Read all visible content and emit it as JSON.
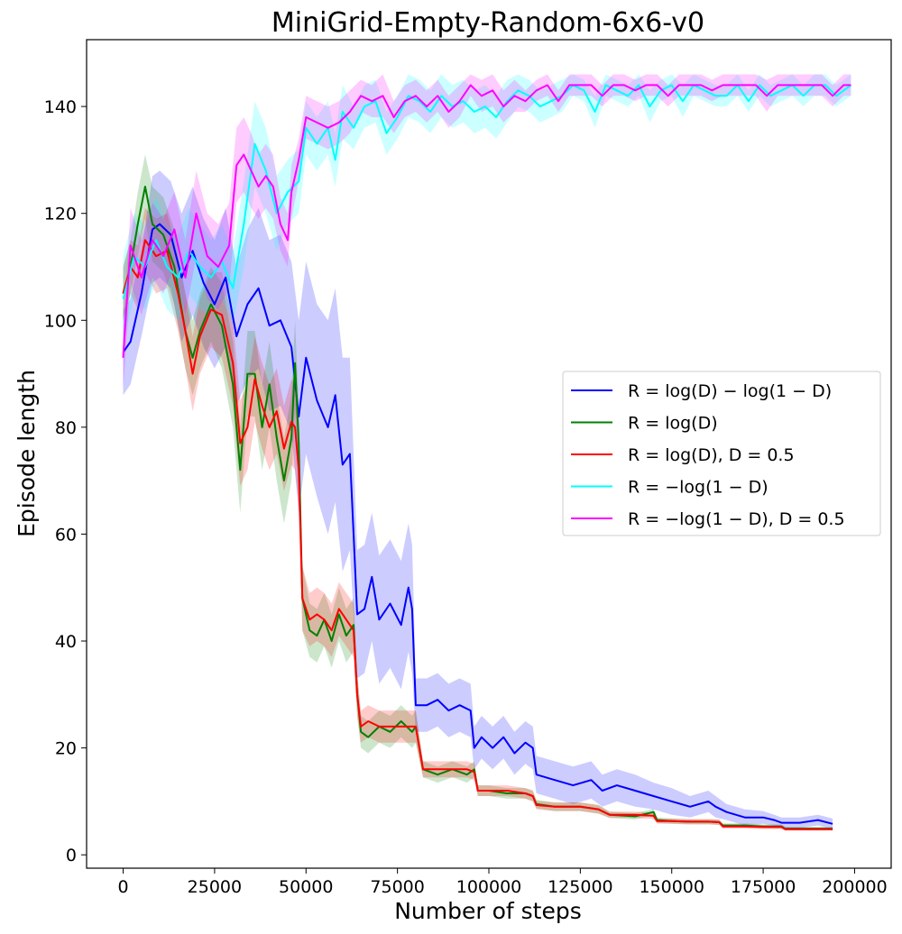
{
  "chart_data": {
    "type": "line",
    "title": "MiniGrid-Empty-Random-6x6-v0",
    "xlabel": "Number of steps",
    "ylabel": "Episode length",
    "xlim": [
      -10000,
      210000
    ],
    "ylim": [
      -2.5,
      152.5
    ],
    "xticks": [
      0,
      25000,
      50000,
      75000,
      100000,
      125000,
      150000,
      175000,
      200000
    ],
    "xtick_labels": [
      "0",
      "25000",
      "50000",
      "75000",
      "100000",
      "125000",
      "150000",
      "175000",
      "200000"
    ],
    "yticks": [
      0,
      20,
      40,
      60,
      80,
      100,
      120,
      140
    ],
    "ytick_labels": [
      "0",
      "20",
      "40",
      "60",
      "80",
      "100",
      "120",
      "140"
    ],
    "grid": false,
    "legend_position": "center-right",
    "series": [
      {
        "name": "R = log(D) − log(1 − D)",
        "color": "#0000ff",
        "x": [
          0,
          2000,
          5000,
          8000,
          10000,
          13000,
          16000,
          19000,
          22000,
          25000,
          28000,
          31000,
          34000,
          37000,
          40000,
          43000,
          46000,
          48000,
          50000,
          53000,
          56000,
          58000,
          60000,
          62000,
          63000,
          64000,
          66000,
          68000,
          70000,
          73000,
          76000,
          78000,
          79000,
          80000,
          83000,
          86000,
          89000,
          92000,
          95000,
          96000,
          98000,
          101000,
          104000,
          107000,
          110000,
          112000,
          113000,
          118000,
          123000,
          128000,
          131000,
          135000,
          140000,
          145000,
          150000,
          155000,
          160000,
          162000,
          165000,
          170000,
          175000,
          178000,
          180000,
          185000,
          190000,
          194000
        ],
        "y": [
          94,
          96,
          105,
          117,
          118,
          116,
          108,
          113,
          107,
          103,
          108,
          97,
          103,
          106,
          99,
          100,
          95,
          82,
          93,
          85,
          80,
          86,
          73,
          75,
          60,
          45,
          46,
          52,
          44,
          47,
          43,
          50,
          46,
          28,
          28,
          29,
          27,
          28,
          27,
          20,
          22,
          20,
          22,
          19,
          21,
          20,
          15,
          14,
          13,
          14,
          12,
          13,
          12,
          11,
          10,
          9,
          10,
          9,
          8,
          7,
          7,
          6.5,
          6,
          6,
          6.5,
          5.8
        ],
        "spread": [
          8,
          8,
          8,
          10,
          10,
          10,
          12,
          12,
          12,
          12,
          13,
          13,
          14,
          15,
          16,
          16,
          16,
          18,
          18,
          18,
          20,
          20,
          20,
          18,
          15,
          12,
          12,
          12,
          12,
          12,
          12,
          12,
          12,
          5,
          5,
          5,
          5,
          5,
          5,
          4,
          4,
          4,
          4,
          4,
          4,
          4,
          3.5,
          3.5,
          3.5,
          3.5,
          3,
          3,
          3,
          2.5,
          2.5,
          2,
          2,
          2,
          1.5,
          1.5,
          1.2,
          1,
          1,
          1,
          1,
          1
        ]
      },
      {
        "name": "R = log(D)",
        "color": "#008000",
        "x": [
          0,
          2000,
          4000,
          6000,
          8000,
          11000,
          14000,
          17000,
          19000,
          21000,
          24000,
          27000,
          30000,
          32000,
          34000,
          36000,
          38000,
          40000,
          42000,
          44000,
          46000,
          47000,
          48000,
          49000,
          51000,
          53000,
          55000,
          57000,
          59000,
          61000,
          63000,
          64000,
          65000,
          67000,
          70000,
          73000,
          76000,
          79000,
          80000,
          82000,
          86000,
          90000,
          94000,
          96000,
          97000,
          100000,
          105000,
          110000,
          112000,
          113000,
          118000,
          125000,
          130000,
          133000,
          140000,
          145000,
          146000,
          150000,
          155000,
          160000,
          163000,
          164000,
          170000,
          175000,
          180000,
          181000,
          190000,
          194000
        ],
        "y": [
          105,
          110,
          118,
          125,
          118,
          116,
          110,
          98,
          93,
          98,
          103,
          99,
          88,
          72,
          90,
          90,
          80,
          88,
          78,
          70,
          78,
          92,
          77,
          48,
          42,
          41,
          44,
          40,
          45,
          41,
          43,
          30,
          23,
          22,
          24,
          23,
          25,
          23,
          24,
          16,
          15,
          16,
          15,
          16,
          12,
          12,
          11.5,
          11.5,
          11,
          9.5,
          9,
          9,
          8.5,
          7.5,
          7.2,
          8,
          6.5,
          6.3,
          6.2,
          6.2,
          6.1,
          5.5,
          5.5,
          5.3,
          5.3,
          4.9,
          4.9,
          4.9
        ],
        "spread": [
          5,
          5,
          6,
          6,
          7,
          7,
          7,
          7,
          7,
          7,
          7,
          8,
          8,
          8,
          8,
          8,
          8,
          8,
          8,
          8,
          8,
          8,
          7,
          6,
          5,
          5,
          5,
          5,
          5,
          5,
          5,
          4,
          3,
          3,
          3,
          3,
          3,
          3,
          3,
          1.5,
          1.5,
          1.5,
          1.5,
          1.5,
          1,
          1,
          1,
          1,
          1,
          0.8,
          0.8,
          0.8,
          0.8,
          0.6,
          0.6,
          0.6,
          0.5,
          0.5,
          0.5,
          0.5,
          0.5,
          0.4,
          0.4,
          0.4,
          0.4,
          0.3,
          0.3,
          0.3
        ]
      },
      {
        "name": "R = log(D), D = 0.5",
        "color": "#ff0000",
        "x": [
          0,
          2000,
          4000,
          6000,
          9000,
          12000,
          15000,
          17000,
          19000,
          21000,
          24000,
          27000,
          30000,
          32000,
          34000,
          36000,
          38000,
          40000,
          42000,
          44000,
          46000,
          47000,
          48000,
          49000,
          51000,
          53000,
          55000,
          57000,
          59000,
          61000,
          63000,
          64000,
          65000,
          67000,
          70000,
          73000,
          76000,
          79000,
          80000,
          82000,
          86000,
          90000,
          94000,
          96000,
          97000,
          100000,
          105000,
          110000,
          112000,
          113000,
          118000,
          125000,
          130000,
          133000,
          140000,
          145000,
          146000,
          150000,
          155000,
          160000,
          163000,
          164000,
          170000,
          175000,
          180000,
          181000,
          190000,
          194000
        ],
        "y": [
          105,
          110,
          108,
          115,
          112,
          113,
          105,
          98,
          90,
          97,
          102,
          101,
          92,
          77,
          80,
          89,
          84,
          80,
          83,
          76,
          81,
          80,
          72,
          48,
          44,
          45,
          44,
          42,
          46,
          44,
          42,
          30,
          24,
          25,
          24,
          24,
          24,
          24,
          24,
          16,
          16,
          16,
          16,
          15.5,
          12,
          12,
          12,
          11.5,
          11,
          9.3,
          9,
          9,
          8.5,
          7.5,
          7.5,
          7.3,
          6.3,
          6.3,
          6.2,
          6.2,
          6.1,
          5.3,
          5.3,
          5.2,
          5.2,
          4.8,
          4.8,
          4.8
        ],
        "spread": [
          5,
          5,
          6,
          6,
          7,
          7,
          7,
          7,
          7,
          7,
          7,
          8,
          8,
          8,
          8,
          8,
          8,
          8,
          8,
          8,
          8,
          8,
          7,
          6,
          5,
          5,
          5,
          5,
          5,
          5,
          5,
          4,
          3,
          3,
          3,
          3,
          3,
          3,
          3,
          1.5,
          1.5,
          1.5,
          1.5,
          1.5,
          1,
          1,
          1,
          1,
          1,
          0.8,
          0.8,
          0.8,
          0.8,
          0.6,
          0.6,
          0.6,
          0.5,
          0.5,
          0.5,
          0.5,
          0.5,
          0.4,
          0.4,
          0.4,
          0.4,
          0.3,
          0.3,
          0.3
        ]
      },
      {
        "name": "R = −log(1 − D)",
        "color": "#00ffff",
        "x": [
          0,
          3000,
          6000,
          9000,
          12000,
          15000,
          18000,
          21000,
          24000,
          27000,
          30000,
          33000,
          36000,
          39000,
          42000,
          45000,
          48000,
          50000,
          53000,
          56000,
          58000,
          60000,
          63000,
          66000,
          69000,
          72000,
          75000,
          78000,
          81000,
          84000,
          87000,
          90000,
          93000,
          96000,
          99000,
          102000,
          105000,
          108000,
          111000,
          114000,
          117000,
          120000,
          123000,
          126000,
          129000,
          132000,
          135000,
          138000,
          141000,
          144000,
          147000,
          150000,
          153000,
          156000,
          159000,
          162000,
          165000,
          168000,
          171000,
          174000,
          177000,
          180000,
          183000,
          186000,
          189000,
          192000,
          195000,
          199000
        ],
        "y": [
          104,
          112,
          110,
          115,
          110,
          108,
          113,
          110,
          108,
          111,
          106,
          118,
          133,
          128,
          120,
          124,
          126,
          136,
          133,
          136,
          130,
          139,
          136,
          140,
          141,
          135,
          138,
          142,
          141,
          139,
          142,
          140,
          141,
          139,
          140,
          138,
          141,
          143,
          142,
          140,
          141,
          142,
          144,
          143,
          139,
          144,
          143,
          142,
          144,
          140,
          143,
          144,
          141,
          144,
          143,
          142,
          142,
          144,
          141,
          144,
          142,
          143,
          144,
          142,
          144,
          144,
          142,
          144
        ],
        "spread": [
          8,
          8,
          8,
          8,
          8,
          8,
          8,
          8,
          7,
          7,
          7,
          8,
          8,
          8,
          7,
          6,
          6,
          5,
          5,
          5,
          5,
          5,
          4,
          4,
          4,
          4,
          4,
          4,
          4,
          4,
          4,
          4,
          4,
          4,
          4,
          4,
          4,
          3,
          3,
          3,
          3,
          3,
          2,
          2,
          3,
          2,
          2,
          2,
          2,
          3,
          2,
          2,
          3,
          2,
          2,
          2,
          2,
          2,
          2,
          2,
          2,
          2,
          2,
          2,
          2,
          2,
          2,
          2
        ]
      },
      {
        "name": "R = −log(1 − D), D = 0.5",
        "color": "#ff00ff",
        "x": [
          0,
          2000,
          5000,
          8000,
          11000,
          14000,
          17000,
          20000,
          23000,
          26000,
          29000,
          31000,
          33000,
          35000,
          37000,
          39000,
          41000,
          43000,
          45000,
          46000,
          48000,
          50000,
          53000,
          56000,
          59000,
          62000,
          65000,
          68000,
          71000,
          74000,
          77000,
          80000,
          83000,
          86000,
          89000,
          92000,
          95000,
          98000,
          101000,
          104000,
          107000,
          110000,
          113000,
          116000,
          119000,
          122000,
          125000,
          128000,
          131000,
          134000,
          137000,
          140000,
          143000,
          146000,
          149000,
          152000,
          155000,
          158000,
          161000,
          164000,
          167000,
          170000,
          173000,
          176000,
          179000,
          182000,
          185000,
          188000,
          191000,
          194000,
          197000,
          199000
        ],
        "y": [
          93,
          114,
          108,
          115,
          112,
          117,
          108,
          120,
          112,
          110,
          114,
          129,
          131,
          128,
          125,
          127,
          125,
          118,
          115,
          124,
          130,
          138,
          137,
          136,
          137,
          139,
          142,
          141,
          142,
          138,
          141,
          142,
          140,
          142,
          139,
          141,
          144,
          142,
          143,
          140,
          142,
          141,
          143,
          144,
          141,
          144,
          144,
          144,
          142,
          144,
          144,
          143,
          144,
          144,
          142,
          144,
          144,
          144,
          143,
          144,
          144,
          144,
          144,
          142,
          144,
          144,
          144,
          144,
          144,
          142,
          144,
          144
        ],
        "spread": [
          6,
          7,
          7,
          7,
          7,
          7,
          7,
          8,
          8,
          8,
          8,
          7,
          7,
          7,
          6,
          6,
          6,
          5,
          5,
          5,
          4,
          4,
          4,
          4,
          4,
          4,
          3,
          3,
          4,
          3,
          3,
          3,
          3,
          3,
          3,
          3,
          2,
          3,
          3,
          3,
          3,
          2,
          2,
          2,
          2,
          2,
          2,
          2,
          2,
          2,
          2,
          2,
          2,
          2,
          2,
          2,
          2,
          2,
          2,
          2,
          2,
          2,
          2,
          3,
          2,
          2,
          2,
          2,
          2,
          2,
          2,
          2
        ]
      }
    ]
  }
}
